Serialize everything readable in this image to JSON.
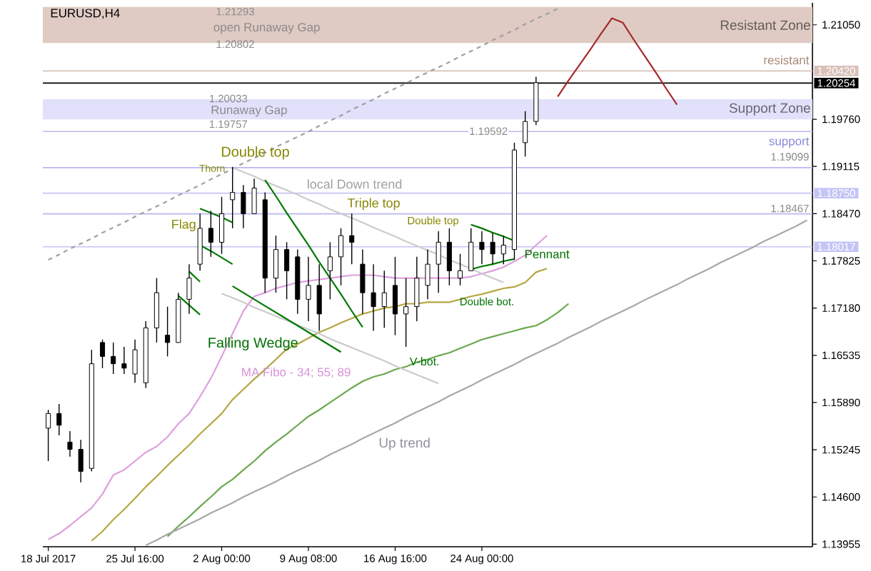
{
  "chart_data": {
    "type": "candlestick",
    "title": "EURUSD,H4",
    "color": "#000000",
    "categories": [
      "18 Jul 2017",
      null,
      null,
      null,
      null,
      null,
      null,
      null,
      "25 Jul 16:00",
      null,
      null,
      null,
      null,
      null,
      null,
      null,
      "2 Aug 00:00",
      null,
      null,
      null,
      null,
      null,
      null,
      null,
      "9 Aug 08:00",
      null,
      null,
      null,
      null,
      null,
      null,
      null,
      "16 Aug 16:00",
      null,
      null,
      null,
      null,
      null,
      null,
      null,
      "24 Aug 00:00",
      null,
      null,
      null,
      null,
      null,
      null,
      null,
      null,
      null,
      null,
      null,
      null,
      null,
      null,
      null,
      null,
      null,
      null,
      null,
      null,
      null,
      null,
      null,
      null,
      null,
      null,
      null,
      null,
      null,
      null
    ],
    "ohlc": [
      [
        1.1554,
        1.1579,
        1.1509,
        1.1574
      ],
      [
        1.1574,
        1.1587,
        1.1544,
        1.1558
      ],
      [
        1.1535,
        1.155,
        1.1515,
        1.1525
      ],
      [
        1.1525,
        1.1538,
        1.148,
        1.1495
      ],
      [
        1.1499,
        1.1661,
        1.1495,
        1.1642
      ],
      [
        1.1671,
        1.1675,
        1.1636,
        1.1652
      ],
      [
        1.1652,
        1.1671,
        1.1628,
        1.1642
      ],
      [
        1.1642,
        1.1665,
        1.1628,
        1.1636
      ],
      [
        1.1628,
        1.1675,
        1.1616,
        1.1661
      ],
      [
        1.1616,
        1.17,
        1.1609,
        1.1691
      ],
      [
        1.1691,
        1.1759,
        1.1671,
        1.1739
      ],
      [
        1.1681,
        1.172,
        1.1652,
        1.1671
      ],
      [
        1.1671,
        1.1739,
        1.1671,
        1.173
      ],
      [
        1.173,
        1.1778,
        1.171,
        1.1759
      ],
      [
        1.1778,
        1.1847,
        1.1769,
        1.1827
      ],
      [
        1.1827,
        1.1851,
        1.1788,
        1.1808
      ],
      [
        1.1808,
        1.187,
        1.1792,
        1.1847
      ],
      [
        1.1866,
        1.1911,
        1.1827,
        1.1876
      ],
      [
        1.1876,
        1.1886,
        1.1827,
        1.1847
      ],
      [
        1.1847,
        1.1895,
        1.1847,
        1.1882
      ],
      [
        1.1866,
        1.1876,
        1.1739,
        1.1759
      ],
      [
        1.1759,
        1.1817,
        1.1739,
        1.1798
      ],
      [
        1.1798,
        1.1808,
        1.173,
        1.1769
      ],
      [
        1.1788,
        1.1798,
        1.171,
        1.173
      ],
      [
        1.173,
        1.1788,
        1.17,
        1.1749
      ],
      [
        1.1749,
        1.1778,
        1.1687,
        1.171
      ],
      [
        1.1769,
        1.1808,
        1.173,
        1.1788
      ],
      [
        1.1788,
        1.1827,
        1.1749,
        1.1817
      ],
      [
        1.1817,
        1.1847,
        1.1778,
        1.1808
      ],
      [
        1.1778,
        1.1798,
        1.171,
        1.1739
      ],
      [
        1.1739,
        1.1778,
        1.1687,
        1.172
      ],
      [
        1.172,
        1.1769,
        1.1691,
        1.1739
      ],
      [
        1.1749,
        1.1788,
        1.1681,
        1.171
      ],
      [
        1.171,
        1.1759,
        1.1665,
        1.172
      ],
      [
        1.172,
        1.1788,
        1.17,
        1.1759
      ],
      [
        1.1749,
        1.1798,
        1.173,
        1.1778
      ],
      [
        1.1778,
        1.1823,
        1.1739,
        1.1808
      ],
      [
        1.1808,
        1.1827,
        1.1749,
        1.1769
      ],
      [
        1.1759,
        1.1792,
        1.1749,
        1.1769
      ],
      [
        1.1769,
        1.1827,
        1.1769,
        1.1808
      ],
      [
        1.1808,
        1.1823,
        1.1778,
        1.1798
      ],
      [
        1.1808,
        1.1821,
        1.1778,
        1.1792
      ],
      [
        1.1792,
        1.1817,
        1.1778,
        1.1804
      ],
      [
        1.1798,
        1.1944,
        1.1784,
        1.1934
      ],
      [
        1.1944,
        1.1987,
        1.1925,
        1.1973
      ],
      [
        1.1973,
        1.2034,
        1.1968,
        1.2026
      ],
      null,
      null,
      null,
      null,
      null,
      null,
      null,
      null,
      null,
      null,
      null,
      null,
      null,
      null,
      null,
      null,
      null,
      null,
      null,
      null,
      null,
      null,
      null,
      null,
      null
    ],
    "series": [
      {
        "type": "line",
        "color": "#dda0dd",
        "values": [
          1.1402,
          1.141,
          1.1421,
          1.1433,
          1.1445,
          1.1464,
          1.149,
          1.1497,
          1.1509,
          1.1521,
          1.1529,
          1.1542,
          1.156,
          1.1574,
          1.1597,
          1.1622,
          1.1652,
          1.1683,
          1.1714,
          1.1734,
          1.1739,
          1.1745,
          1.1749,
          1.1753,
          1.1755,
          1.1757,
          1.1759,
          1.1761,
          1.1763,
          1.1763,
          1.1763,
          1.1761,
          1.1759,
          1.1759,
          1.1759,
          1.1759,
          1.1759,
          1.1759,
          1.1759,
          1.1761,
          1.1765,
          1.1769,
          1.1774,
          1.1782,
          1.179,
          1.1804,
          1.1817,
          null,
          null,
          null,
          null,
          null,
          null,
          null,
          null,
          null,
          null,
          null,
          null,
          null,
          null,
          null,
          null,
          null,
          null,
          null,
          null,
          null,
          null,
          null,
          null
        ]
      },
      {
        "type": "line",
        "color": "#b5a642",
        "values": [
          null,
          null,
          null,
          null,
          1.14,
          1.1413,
          1.1429,
          1.1443,
          1.1458,
          1.1474,
          1.1488,
          1.1503,
          1.1517,
          1.1531,
          1.1546,
          1.156,
          1.1574,
          1.1593,
          1.1607,
          1.1621,
          1.1634,
          1.1648,
          1.1662,
          1.1669,
          1.1677,
          1.1685,
          1.1691,
          1.1698,
          1.1704,
          1.171,
          1.1714,
          1.1718,
          1.172,
          1.1724,
          1.1724,
          1.1726,
          1.1726,
          1.1726,
          1.173,
          1.1734,
          1.1737,
          1.1741,
          1.1745,
          1.1747,
          1.1753,
          1.1767,
          1.1772,
          null,
          null,
          null,
          null,
          null,
          null,
          null,
          null,
          null,
          null,
          null,
          null,
          null,
          null,
          null,
          null,
          null,
          null,
          null,
          null,
          null,
          null,
          null,
          null
        ]
      },
      {
        "type": "line",
        "color": "#6aa84f",
        "values": [
          null,
          null,
          null,
          null,
          null,
          null,
          null,
          null,
          null,
          null,
          null,
          1.1406,
          1.142,
          1.1433,
          1.1447,
          1.146,
          1.1474,
          1.1484,
          1.1497,
          1.1509,
          1.1523,
          1.1535,
          1.1546,
          1.1558,
          1.157,
          1.1579,
          1.1589,
          1.1599,
          1.1609,
          1.1618,
          1.1624,
          1.1628,
          1.1634,
          1.1638,
          1.1644,
          1.1648,
          1.1653,
          1.1657,
          1.1663,
          1.1669,
          1.1675,
          1.1679,
          1.1683,
          1.1687,
          1.1691,
          1.1694,
          1.1702,
          1.1712,
          1.1724,
          null,
          null,
          null,
          null,
          null,
          null,
          null,
          null,
          null,
          null,
          null,
          null,
          null,
          null,
          null,
          null,
          null,
          null,
          null,
          null,
          null,
          null
        ]
      },
      {
        "type": "line",
        "color": "#a0a0a0",
        "line_style": "dashed",
        "values": [
          1.1784,
          1.1791,
          1.1799,
          1.1806,
          1.1813,
          1.1821,
          1.1828,
          1.1835,
          1.1843,
          1.185,
          1.1857,
          1.1864,
          1.1872,
          1.1879,
          1.1886,
          1.1894,
          1.1901,
          1.1908,
          1.1916,
          1.1923,
          1.193,
          1.1938,
          1.1945,
          1.1952,
          1.1959,
          1.1967,
          1.1974,
          1.1981,
          1.1989,
          1.1996,
          1.2003,
          1.2011,
          1.2018,
          1.2025,
          1.2033,
          1.204,
          1.2047,
          1.2054,
          1.2062,
          1.2069,
          1.2076,
          1.2084,
          1.2091,
          1.2098,
          1.2106,
          1.2113,
          1.212,
          1.2127,
          null,
          null,
          null,
          null,
          null,
          null,
          null,
          null,
          null,
          null,
          null,
          null,
          null,
          null,
          null,
          null,
          null,
          null,
          null,
          null,
          null,
          null,
          null
        ]
      },
      {
        "type": "line",
        "color": "#a8a8a8",
        "values": [
          null,
          null,
          null,
          null,
          null,
          null,
          null,
          null,
          null,
          1.1394,
          1.1401,
          1.1409,
          1.1416,
          1.1423,
          1.143,
          1.1438,
          1.1445,
          1.1452,
          1.146,
          1.1467,
          1.1474,
          1.1481,
          1.1489,
          1.1496,
          1.1503,
          1.151,
          1.1518,
          1.1525,
          1.1532,
          1.154,
          1.1547,
          1.1554,
          1.1561,
          1.1569,
          1.1576,
          1.1583,
          1.159,
          1.1598,
          1.1605,
          1.1612,
          1.162,
          1.1627,
          1.1634,
          1.1641,
          1.1649,
          1.1656,
          1.1663,
          1.167,
          1.1678,
          1.1685,
          1.1692,
          1.17,
          1.1707,
          1.1714,
          1.1721,
          1.1729,
          1.1736,
          1.1743,
          1.175,
          1.1758,
          1.1765,
          1.1772,
          1.178,
          1.1787,
          1.1794,
          1.1801,
          1.1809,
          1.1816,
          1.1823,
          1.183,
          1.1838
        ]
      },
      {
        "type": "line",
        "color": "#cccccc",
        "values": [
          null,
          null,
          null,
          null,
          null,
          null,
          null,
          null,
          null,
          null,
          null,
          null,
          null,
          null,
          null,
          null,
          null,
          1.191,
          1.1904,
          1.1898,
          1.1891,
          1.1885,
          1.1879,
          1.1873,
          1.1866,
          1.186,
          1.1853,
          1.1847,
          1.1841,
          1.1835,
          1.1828,
          1.1822,
          1.1816,
          1.1809,
          1.1803,
          1.1797,
          1.1791,
          1.1784,
          1.1778,
          1.1772,
          1.1765,
          1.1759,
          1.1753,
          null,
          null,
          null,
          null,
          null,
          null,
          null,
          null,
          null,
          null,
          null,
          null,
          null,
          null,
          null,
          null,
          null,
          null,
          null,
          null,
          null,
          null,
          null,
          null,
          null,
          null,
          null,
          null
        ]
      },
      {
        "type": "line",
        "color": "#cbcbcb",
        "values": [
          null,
          null,
          null,
          null,
          null,
          null,
          null,
          null,
          null,
          null,
          null,
          null,
          null,
          null,
          null,
          null,
          1.1738,
          1.1732,
          1.1726,
          1.1719,
          1.1713,
          1.1707,
          1.1701,
          1.1695,
          1.1689,
          1.1683,
          1.1676,
          1.167,
          1.1664,
          1.1658,
          1.1652,
          1.1646,
          1.1639,
          1.1633,
          1.1627,
          1.1621,
          1.1615,
          null,
          null,
          null,
          null,
          null,
          null,
          null,
          null,
          null,
          null,
          null,
          null,
          null,
          null,
          null,
          null,
          null,
          null,
          null,
          null,
          null,
          null,
          null,
          null,
          null,
          null,
          null,
          null,
          null,
          null,
          null,
          null,
          null,
          null
        ]
      },
      {
        "type": "line",
        "color": "#007a00",
        "values": [
          null,
          null,
          null,
          null,
          null,
          null,
          null,
          null,
          null,
          null,
          null,
          null,
          null,
          null,
          1.1854,
          1.1848,
          1.1842,
          1.1835,
          null,
          null,
          null,
          null,
          null,
          null,
          null,
          null,
          null,
          null,
          null,
          null,
          null,
          null,
          null,
          null,
          null,
          null,
          null,
          null,
          null,
          null,
          null,
          null,
          null,
          null,
          null,
          null,
          null,
          null,
          null,
          null,
          null,
          null,
          null,
          null,
          null,
          null,
          null,
          null,
          null,
          null,
          null,
          null,
          null,
          null,
          null,
          null,
          null,
          null,
          null,
          null,
          null
        ]
      },
      {
        "type": "line",
        "color": "#007b00",
        "values": [
          null,
          null,
          null,
          null,
          null,
          null,
          null,
          null,
          null,
          null,
          null,
          null,
          null,
          null,
          1.1804,
          1.1796,
          1.1787,
          1.1778,
          null,
          null,
          null,
          null,
          null,
          null,
          null,
          null,
          null,
          null,
          null,
          null,
          null,
          null,
          null,
          null,
          null,
          null,
          null,
          null,
          null,
          null,
          null,
          null,
          null,
          null,
          null,
          null,
          null,
          null,
          null,
          null,
          null,
          null,
          null,
          null,
          null,
          null,
          null,
          null,
          null,
          null,
          null,
          null,
          null,
          null,
          null,
          null,
          null,
          null,
          null,
          null,
          null
        ]
      },
      {
        "type": "line",
        "color": "#007c00",
        "values": [
          null,
          null,
          null,
          null,
          null,
          null,
          null,
          null,
          null,
          null,
          null,
          null,
          null,
          1.1768,
          1.1754,
          null,
          null,
          null,
          null,
          null,
          null,
          null,
          null,
          null,
          null,
          null,
          null,
          null,
          null,
          null,
          null,
          null,
          null,
          null,
          null,
          null,
          null,
          null,
          null,
          null,
          null,
          null,
          null,
          null,
          null,
          null,
          null,
          null,
          null,
          null,
          null,
          null,
          null,
          null,
          null,
          null,
          null,
          null,
          null,
          null,
          null,
          null,
          null,
          null,
          null,
          null,
          null,
          null,
          null,
          null,
          null
        ]
      },
      {
        "type": "line",
        "color": "#007d00",
        "values": [
          null,
          null,
          null,
          null,
          null,
          null,
          null,
          null,
          null,
          null,
          null,
          null,
          1.1735,
          1.1722,
          1.1709,
          null,
          null,
          null,
          null,
          null,
          null,
          null,
          null,
          null,
          null,
          null,
          null,
          null,
          null,
          null,
          null,
          null,
          null,
          null,
          null,
          null,
          null,
          null,
          null,
          null,
          null,
          null,
          null,
          null,
          null,
          null,
          null,
          null,
          null,
          null,
          null,
          null,
          null,
          null,
          null,
          null,
          null,
          null,
          null,
          null,
          null,
          null,
          null,
          null,
          null,
          null,
          null,
          null,
          null,
          null,
          null
        ]
      },
      {
        "type": "line",
        "color": "#007800",
        "values": [
          null,
          null,
          null,
          null,
          null,
          null,
          null,
          null,
          null,
          null,
          null,
          null,
          null,
          null,
          null,
          null,
          null,
          null,
          null,
          null,
          1.1893,
          1.1871,
          1.1848,
          1.1826,
          1.1804,
          1.1781,
          1.1759,
          1.1737,
          1.1714,
          1.1692,
          null,
          null,
          null,
          null,
          null,
          null,
          null,
          null,
          null,
          null,
          null,
          null,
          null,
          null,
          null,
          null,
          null,
          null,
          null,
          null,
          null,
          null,
          null,
          null,
          null,
          null,
          null,
          null,
          null,
          null,
          null,
          null,
          null,
          null,
          null,
          null,
          null,
          null,
          null,
          null,
          null
        ]
      },
      {
        "type": "line",
        "color": "#007900",
        "values": [
          null,
          null,
          null,
          null,
          null,
          null,
          null,
          null,
          null,
          null,
          null,
          null,
          null,
          null,
          null,
          null,
          null,
          1.1748,
          1.1739,
          1.173,
          1.1721,
          1.1712,
          1.1703,
          1.1694,
          1.1685,
          1.1676,
          1.1667,
          1.1658,
          null,
          null,
          null,
          null,
          null,
          null,
          null,
          null,
          null,
          null,
          null,
          null,
          null,
          null,
          null,
          null,
          null,
          null,
          null,
          null,
          null,
          null,
          null,
          null,
          null,
          null,
          null,
          null,
          null,
          null,
          null,
          null,
          null,
          null,
          null,
          null,
          null,
          null,
          null,
          null,
          null,
          null,
          null
        ]
      },
      {
        "type": "line",
        "color": "#007600",
        "values": [
          null,
          null,
          null,
          null,
          null,
          null,
          null,
          null,
          null,
          null,
          null,
          null,
          null,
          null,
          null,
          null,
          null,
          null,
          null,
          null,
          null,
          null,
          null,
          null,
          null,
          null,
          null,
          null,
          null,
          null,
          null,
          null,
          null,
          null,
          null,
          null,
          null,
          null,
          null,
          1.1832,
          1.1827,
          1.1821,
          1.1816,
          1.181,
          null,
          null,
          null,
          null,
          null,
          null,
          null,
          null,
          null,
          null,
          null,
          null,
          null,
          null,
          null,
          null,
          null,
          null,
          null,
          null,
          null,
          null,
          null,
          null,
          null,
          null,
          null
        ]
      },
      {
        "type": "line",
        "color": "#007700",
        "values": [
          null,
          null,
          null,
          null,
          null,
          null,
          null,
          null,
          null,
          null,
          null,
          null,
          null,
          null,
          null,
          null,
          null,
          null,
          null,
          null,
          null,
          null,
          null,
          null,
          null,
          null,
          null,
          null,
          null,
          null,
          null,
          null,
          null,
          null,
          null,
          null,
          null,
          null,
          null,
          1.1771,
          1.1775,
          1.1778,
          1.1782,
          1.1785,
          null,
          null,
          null,
          null,
          null,
          null,
          null,
          null,
          null,
          null,
          null,
          null,
          null,
          null,
          null,
          null,
          null,
          null,
          null,
          null,
          null,
          null,
          null,
          null,
          null,
          null,
          null
        ]
      },
      {
        "type": "line",
        "color": "#a52a2a",
        "values": [
          null,
          null,
          null,
          null,
          null,
          null,
          null,
          null,
          null,
          null,
          null,
          null,
          null,
          null,
          null,
          null,
          null,
          null,
          null,
          null,
          null,
          null,
          null,
          null,
          null,
          null,
          null,
          null,
          null,
          null,
          null,
          null,
          null,
          null,
          null,
          null,
          null,
          null,
          null,
          null,
          null,
          null,
          null,
          null,
          null,
          null,
          null,
          1.2007,
          1.2029,
          1.205,
          1.2071,
          1.2093,
          1.2114,
          1.2108,
          1.2085,
          1.2063,
          1.2041,
          1.2018,
          1.1996,
          null,
          null,
          null,
          null,
          null,
          null,
          null,
          null,
          null,
          null,
          null,
          null
        ]
      }
    ],
    "ylim": [
      1.1392,
      1.2135
    ],
    "yticks": [
      {
        "value": 1.2105,
        "label": "1.21050"
      },
      {
        "value": 1.1976,
        "label": "1.19760"
      },
      {
        "value": 1.19115,
        "label": "1.19115"
      },
      {
        "value": 1.1847,
        "label": "1.18470"
      },
      {
        "value": 1.17825,
        "label": "1.17825"
      },
      {
        "value": 1.1718,
        "label": "1.17180"
      },
      {
        "value": 1.16535,
        "label": "1.16535"
      },
      {
        "value": 1.1589,
        "label": "1.15890"
      },
      {
        "value": 1.15245,
        "label": "1.15245"
      },
      {
        "value": 1.146,
        "label": "1.14600"
      },
      {
        "value": 1.13955,
        "label": "1.13955"
      }
    ],
    "bands": [
      {
        "axis": "y",
        "from": 1.20802,
        "to": 1.21293,
        "label": "Resistant Zone",
        "color": "#dfcbc4"
      },
      {
        "axis": "y",
        "from": 1.19757,
        "to": 1.20033,
        "label": "Support Zone",
        "color": "#e1e1fb"
      }
    ],
    "ref_lines": [
      {
        "axis": "y",
        "value": 1.2042,
        "label": "1.20420",
        "color": "#d9c1b9"
      },
      {
        "axis": "y",
        "value": 1.20254,
        "label": "1.20254",
        "color": "#000000"
      },
      {
        "axis": "y",
        "value": 1.19592,
        "color": "#b8b8f0"
      },
      {
        "axis": "y",
        "value": 1.19099,
        "color": "#b8b8f0"
      },
      {
        "axis": "y",
        "value": 1.1875,
        "label": "1.18750",
        "color": "#c4c4f6"
      },
      {
        "axis": "y",
        "value": 1.18467,
        "color": "#b8b8f0"
      },
      {
        "axis": "y",
        "value": 1.18017,
        "label": "1.18017",
        "color": "#c4c4f6"
      }
    ],
    "annotations": [
      "1.21293",
      "open Runaway Gap",
      "1.20802",
      "1.20033",
      "Runaway Gap",
      "1.19757",
      "resistant",
      "1.19592",
      "support",
      "1.19099",
      "1.18467",
      "Double top",
      "Thorn",
      "Triple top",
      "Double top",
      "local Down trend",
      "Flag",
      "Pennant",
      "Double bot.",
      "Falling Wedge",
      "MA Fibo - 34; 55; 89",
      "V-bot.",
      "Up trend"
    ]
  }
}
